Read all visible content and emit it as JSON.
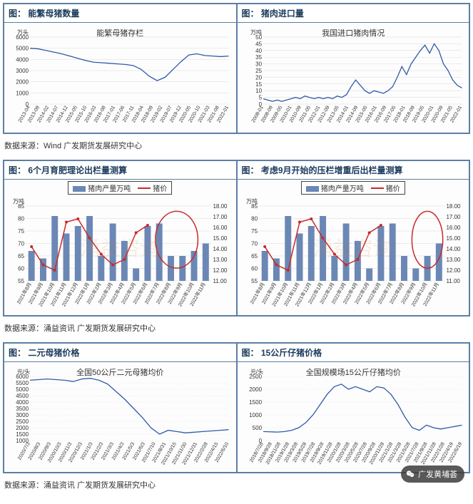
{
  "style": {
    "border_color": "#5b7fa6",
    "line_color": "#2f5aa8",
    "bar_color": "#6b87b5",
    "price_line_color": "#c92a2a",
    "grid_color": "#d9d9d9",
    "axis_font_size": 8,
    "title_font_size": 12,
    "circle_stroke": "#c92a2a"
  },
  "rows": [
    {
      "source": "数据来源：Wind  广发期货发展研究中心",
      "panels": [
        {
          "header": "图：  能繁母猪数量",
          "chart_title": "能繁母猪存栏",
          "y_unit": "万头",
          "type": "line",
          "xlabels": [
            "2013-04",
            "2013-09",
            "2014-02",
            "2014-07",
            "2014-12",
            "2015-05",
            "2015-10",
            "2016-03",
            "2016-08",
            "2017-01",
            "2017-06",
            "2017-11",
            "2018-04",
            "2018-09",
            "2019-02",
            "2019-07",
            "2019-12",
            "2020-05",
            "2020-10",
            "2021-03",
            "2021-08",
            "2022-01"
          ],
          "yticks": [
            0,
            1000,
            2000,
            3000,
            4000,
            5000,
            6000
          ],
          "series": [
            {
              "color": "#2f5aa8",
              "values": [
                5000,
                4950,
                4800,
                4650,
                4500,
                4300,
                4100,
                3900,
                3750,
                3700,
                3650,
                3600,
                3550,
                3450,
                3100,
                2500,
                2100,
                2400,
                3100,
                3800,
                4400,
                4500,
                4350,
                4300,
                4250,
                4300
              ]
            }
          ]
        },
        {
          "header": "图：  猪肉进口量",
          "chart_title": "我国进口猪肉情况",
          "y_unit": "万吨",
          "type": "line",
          "xlabels": [
            "2008-01",
            "2008-09",
            "2009-05",
            "2010-01",
            "2010-09",
            "2011-05",
            "2012-01",
            "2012-09",
            "2013-05",
            "2014-01",
            "2014-09",
            "2015-05",
            "2016-01",
            "2016-09",
            "2017-05",
            "2018-01",
            "2018-09",
            "2019-05",
            "2020-01",
            "2020-09",
            "2021-05",
            "2022-01"
          ],
          "yticks": [
            0,
            5,
            10,
            15,
            20,
            25,
            30,
            35,
            40,
            45,
            50
          ],
          "series": [
            {
              "color": "#2f5aa8",
              "values": [
                4,
                3,
                2,
                3,
                2,
                3,
                4,
                5,
                4,
                6,
                5,
                4,
                5,
                4,
                5,
                4,
                6,
                5,
                7,
                13,
                18,
                14,
                10,
                8,
                10,
                9,
                8,
                10,
                13,
                20,
                28,
                22,
                30,
                35,
                40,
                44,
                38,
                45,
                40,
                30,
                25,
                18,
                14,
                12
              ]
            }
          ]
        }
      ]
    },
    {
      "source": "数据来源：涌益资讯  广发期货发展研究中心",
      "watermark": "涌益咨询",
      "panels": [
        {
          "header": "图：  6个月育肥理论出栏量测算",
          "type": "bar_line",
          "legend_bar": "猪肉产量万吨",
          "legend_line": "猪价",
          "y_unit_left": "万吨",
          "xlabels": [
            "2021年8月",
            "2021年9月",
            "2021年10月",
            "2021年11月",
            "2021年12月",
            "2022年1月",
            "2022年2月",
            "2022年3月",
            "2022年4月",
            "2022年5月",
            "2022年6月",
            "2022年7月",
            "2022年8月",
            "2022年9月",
            "2022年10月",
            "2022年11月"
          ],
          "yticks_left": [
            55,
            60,
            65,
            70,
            75,
            80,
            85
          ],
          "yticks_right": [
            11.0,
            12.0,
            13.0,
            14.0,
            15.0,
            16.0,
            17.0,
            18.0
          ],
          "bars": {
            "color": "#6b87b5",
            "values": [
              67,
              64,
              81,
              74,
              77,
              81,
              65,
              78,
              71,
              60,
              77,
              78,
              65,
              65,
              67,
              70
            ]
          },
          "line": {
            "color": "#c92a2a",
            "values": [
              14.2,
              12.5,
              12.0,
              16.5,
              16.8,
              15.0,
              13.5,
              12.5,
              13.0,
              15.5,
              16.2,
              null,
              null,
              null,
              null,
              null
            ]
          },
          "circle_region": {
            "start": 11,
            "end": 14
          }
        },
        {
          "header": "图：  考虑9月开始的压栏增重后出栏量测算",
          "type": "bar_line",
          "legend_bar": "猪肉产量万吨",
          "legend_line": "猪价",
          "y_unit_left": "万吨",
          "xlabels": [
            "2021年8月",
            "2021年9月",
            "2021年10月",
            "2021年11月",
            "2021年12月",
            "2022年1月",
            "2022年2月",
            "2022年3月",
            "2022年4月",
            "2022年5月",
            "2022年6月",
            "2022年7月",
            "2022年8月",
            "2022年9月",
            "2022年10月",
            "2022年11月"
          ],
          "yticks_left": [
            55,
            60,
            65,
            70,
            75,
            80,
            85
          ],
          "yticks_right": [
            11.0,
            12.0,
            13.0,
            14.0,
            15.0,
            16.0,
            17.0,
            18.0
          ],
          "bars": {
            "color": "#6b87b5",
            "values": [
              67,
              64,
              81,
              74,
              77,
              81,
              65,
              78,
              71,
              60,
              77,
              78,
              65,
              60,
              65,
              70
            ]
          },
          "line": {
            "color": "#c92a2a",
            "values": [
              14.2,
              12.5,
              12.0,
              16.5,
              16.8,
              15.0,
              13.5,
              12.5,
              13.0,
              15.5,
              16.2,
              null,
              null,
              null,
              null,
              null
            ]
          },
          "circle_region": {
            "start": 13,
            "end": 15
          }
        }
      ]
    },
    {
      "source": "数据来源：涌益资讯  广发期货发展研究中心",
      "panels": [
        {
          "header": "图：  二元母猪价格",
          "chart_title": "全国50公斤二元母猪均价",
          "y_unit": "元/头",
          "type": "line_dotgrid",
          "xlabels": [
            "2020/7/3",
            "2020/8/3",
            "2020/9/3",
            "2020/10/3",
            "2020/11/3",
            "2020/12/3",
            "2021/1/3",
            "2021/2/3",
            "2021/3/3",
            "2021/4/3",
            "2021/5/3",
            "2021/6/3",
            "2021/7/10",
            "2021/8/31",
            "2021/10/15",
            "2021/11/30",
            "2021/12/31",
            "2022/2/28",
            "2022/4/15",
            "2022/6/10"
          ],
          "yticks": [
            1000,
            1500,
            2000,
            2500,
            3000,
            3500,
            4000,
            4500,
            5000,
            5500,
            6000
          ],
          "series": [
            {
              "color": "#2f5aa8",
              "values": [
                5700,
                5750,
                5800,
                5750,
                5700,
                5600,
                5800,
                5850,
                5700,
                5400,
                4800,
                4200,
                3500,
                2800,
                2000,
                1500,
                1800,
                1700,
                1600,
                1650,
                1700,
                1750,
                1800,
                1850
              ]
            }
          ]
        },
        {
          "header": "图：  15公斤仔猪价格",
          "chart_title": "全国规模场15公斤仔猪均价",
          "y_unit": "元/头",
          "type": "line_dotgrid",
          "xlabels": [
            "2018/7/28",
            "2018/9/28",
            "2018/11/28",
            "2019/1/28",
            "2019/3/28",
            "2019/5/28",
            "2019/7/28",
            "2019/9/28",
            "2019/11/28",
            "2020/1/28",
            "2020/3/28",
            "2020/5/28",
            "2020/7/28",
            "2020/9/28",
            "2020/11/28",
            "2021/1/28",
            "2021/3/28",
            "2021/5/28",
            "2021/7/28",
            "2021/9/28",
            "2021/11/28",
            "2022/1/28",
            "2022/4/19",
            "2022/6/19"
          ],
          "yticks": [
            0,
            500,
            1000,
            1500,
            2000,
            2500
          ],
          "series": [
            {
              "color": "#2f5aa8",
              "values": [
                350,
                340,
                330,
                350,
                400,
                500,
                700,
                1000,
                1400,
                1800,
                2100,
                2200,
                2000,
                2100,
                2000,
                1900,
                2100,
                2050,
                1800,
                1400,
                900,
                500,
                400,
                600,
                500,
                450,
                500,
                550,
                600
              ]
            }
          ]
        }
      ]
    }
  ],
  "chat_label": "广发黄埔荟"
}
